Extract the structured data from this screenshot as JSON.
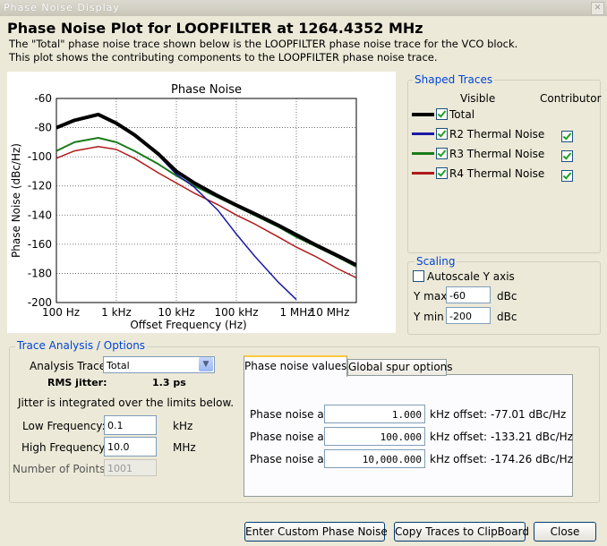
{
  "window_title": "Phase Noise Display",
  "header": {
    "title": "Phase Noise Plot for LOOPFILTER at 1264.4352 MHz",
    "lines": [
      "The \"Total\" phase noise trace shown below is the LOOPFILTER phase noise trace for the VCO block.",
      "This plot shows the contributing components to the LOOPFILTER phase noise trace."
    ]
  },
  "chart_data": {
    "type": "line",
    "title": "Phase Noise",
    "x_label": "Offset Frequency (Hz)",
    "y_label": "Phase Noise (dBc/Hz)",
    "x_log": true,
    "grid": true,
    "x": [
      100,
      200,
      500,
      1000,
      2000,
      5000,
      10000,
      20000,
      50000,
      100000,
      200000,
      500000,
      1000000,
      2000000,
      5000000,
      10000000
    ],
    "xlim": [
      100,
      10000000
    ],
    "xticks": [
      {
        "value": 100,
        "label": "100 Hz"
      },
      {
        "value": 1000,
        "label": "1 kHz"
      },
      {
        "value": 10000,
        "label": "10 kHz"
      },
      {
        "value": 100000,
        "label": "100 kHz"
      },
      {
        "value": 1000000,
        "label": "1 MHz"
      },
      {
        "value": 10000000,
        "label": "10 MHz"
      }
    ],
    "ylim": [
      -200,
      -60
    ],
    "yticks": [
      -200,
      -180,
      -160,
      -140,
      -120,
      -100,
      -80,
      -60
    ],
    "series": [
      {
        "name": "Total",
        "color": "#000000",
        "width": 4,
        "contributor": false,
        "values": [
          -80,
          -75,
          -71,
          -77,
          -85,
          -98,
          -110,
          -118,
          -127,
          -133.2,
          -139,
          -147,
          -153.5,
          -160,
          -168,
          -174.3
        ]
      },
      {
        "name": "R2  Thermal Noise",
        "color": "#1a1aa8",
        "width": 1.5,
        "contributor": true,
        "values": [
          -80,
          -75,
          -71,
          -77,
          -85,
          -99,
          -112,
          -121,
          -137,
          -153,
          -168,
          -186,
          -198,
          null,
          null,
          null
        ]
      },
      {
        "name": "R3  Thermal Noise",
        "color": "#1a7a1a",
        "width": 2,
        "contributor": true,
        "values": [
          -96,
          -90,
          -87,
          -90,
          -96,
          -105,
          -113,
          -120,
          -128,
          -134,
          -140,
          -148,
          -155,
          -161,
          -169,
          -175.5
        ]
      },
      {
        "name": "R4  Thermal Noise",
        "color": "#b01a1a",
        "width": 1.5,
        "contributor": true,
        "values": [
          -101,
          -96,
          -93,
          -95,
          -101,
          -111,
          -118,
          -125,
          -133,
          -140,
          -146,
          -155,
          -162,
          -168,
          -177,
          -183
        ]
      }
    ]
  },
  "shaped_traces": {
    "title": "Shaped Traces",
    "columns": [
      "Visible",
      "Contributor"
    ]
  },
  "scaling": {
    "title": "Scaling",
    "autoscale": "Autoscale Y axis",
    "ymax_label": "Y max",
    "ymax": "-60",
    "ymax_unit": "dBc",
    "ymin_label": "Y min",
    "ymin": "-200",
    "ymin_unit": "dBc"
  },
  "trace_analysis": {
    "title": "Trace Analysis / Options",
    "analysis_trace_label": "Analysis Trace:",
    "analysis_trace": "Total",
    "rms_jitter_label": "RMS jitter:",
    "rms_jitter": "1.3 ps",
    "note": "Jitter is integrated over the limits below.",
    "fields": [
      {
        "label": "Low Frequency:",
        "value": "0.1",
        "unit": "kHz"
      },
      {
        "label": "High Frequency:",
        "value": "10.0",
        "unit": "MHz"
      },
      {
        "label": "Number of Points:",
        "value": "1001"
      }
    ]
  },
  "tabs": [
    "Phase noise values",
    "Global spur options"
  ],
  "phase_noise_values": {
    "rows": [
      {
        "label": "Phase noise at",
        "offset": "1.000",
        "unit": "kHz offset:",
        "result": "-77.01 dBc/Hz"
      },
      {
        "label": "Phase noise at",
        "offset": "100.000",
        "unit": "kHz offset:",
        "result": "-133.21 dBc/Hz"
      },
      {
        "label": "Phase noise at",
        "offset": "10,000.000",
        "unit": "kHz offset:",
        "result": "-174.26 dBc/Hz"
      }
    ]
  },
  "buttons": [
    "Enter Custom Phase Noise",
    "Copy Traces to ClipBoard",
    "Close"
  ]
}
